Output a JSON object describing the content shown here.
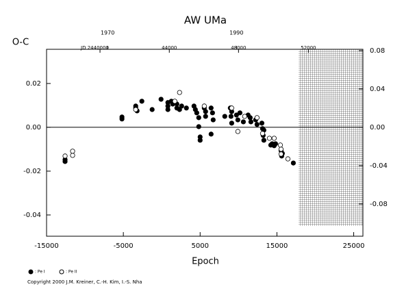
{
  "chart_data": {
    "type": "scatter",
    "title": "AW UMa",
    "ylabel": "O-C",
    "xlabel": "Epoch",
    "copyright": "Copyright 2000 J.M. Kreiner, C.-H. Kim, I.-S. Nha",
    "xlim": [
      -15000,
      26200
    ],
    "ylim": [
      -0.0497,
      0.0356
    ],
    "y2lim": [
      -0.1136,
      0.0814
    ],
    "xticks": [
      -15000,
      -5000,
      5000,
      15000,
      25000
    ],
    "yticks": [
      -0.04,
      -0.02,
      {
        "value": 0,
        "label": "0.00"
      },
      0.02
    ],
    "y2ticks": [
      -0.08,
      -0.04,
      {
        "value": 0,
        "label": "0.00"
      },
      0.04,
      0.08
    ],
    "year_ticks": [
      {
        "value": -7050,
        "label": "1970"
      },
      {
        "value": 9730,
        "label": "1990"
      }
    ],
    "jd_ticks": [
      {
        "value": -8040,
        "label": "JD 2440000"
      },
      {
        "value": 985,
        "label": "44000"
      },
      {
        "value": 10000,
        "label": "48000"
      },
      {
        "value": 19100,
        "label": "52000"
      }
    ],
    "series": [
      {
        "name": ": Pe I",
        "color": "#000000",
        "filled": true,
        "x": [
          -12590,
          -12590,
          -5180,
          -5180,
          -3390,
          -3390,
          -3210,
          -2590,
          -1250,
          -90,
          800,
          800,
          800,
          1250,
          1430,
          1970,
          1970,
          2320,
          2590,
          3210,
          4200,
          4380,
          4560,
          4820,
          5000,
          5000,
          4820,
          5540,
          5710,
          5710,
          6430,
          6610,
          6700,
          6430,
          8210,
          8930,
          9110,
          9020,
          9110,
          9730,
          9910,
          10180,
          10630,
          11250,
          11520,
          11610,
          12230,
          12410,
          13040,
          13130,
          13210,
          13300,
          13300,
          14200,
          14380,
          14640,
          14820,
          15540,
          15710,
          15620,
          17140
        ],
        "values": [
          -0.0147,
          -0.0156,
          0.0047,
          0.0038,
          0.0097,
          0.0088,
          0.0075,
          0.0119,
          0.0081,
          0.0128,
          0.0113,
          0.0097,
          0.0081,
          0.0119,
          0.0106,
          0.0106,
          0.0088,
          0.0081,
          0.0097,
          0.0088,
          0.0097,
          0.0081,
          0.0066,
          0.0003,
          -0.0044,
          -0.0059,
          0.0044,
          0.0088,
          0.0072,
          0.005,
          0.0088,
          0.0066,
          0.0034,
          -0.0031,
          0.005,
          0.0088,
          0.0072,
          0.005,
          0.0019,
          0.0056,
          0.0034,
          0.0066,
          0.0025,
          0.0056,
          0.0044,
          0.0025,
          0.0034,
          0.0013,
          0.0019,
          -0.0006,
          -0.0037,
          -0.0059,
          -0.0013,
          -0.0081,
          -0.0075,
          -0.0084,
          -0.0075,
          -0.0106,
          -0.0119,
          -0.0131,
          -0.0163
        ]
      },
      {
        "name": ": Pe II",
        "color": "#000000",
        "filled": false,
        "x": [
          -12590,
          -11610,
          -11610,
          -3390,
          2320,
          1700,
          5540,
          9110,
          9910,
          10800,
          12410,
          13130,
          14020,
          14640,
          15450,
          15540,
          15540,
          16430
        ],
        "values": [
          -0.0131,
          -0.0128,
          -0.0109,
          0.0081,
          0.0159,
          0.0119,
          0.0097,
          0.0088,
          -0.0019,
          0.005,
          0.0044,
          -0.0028,
          -0.005,
          -0.005,
          -0.0081,
          -0.01,
          -0.0122,
          -0.0144
        ]
      }
    ]
  }
}
